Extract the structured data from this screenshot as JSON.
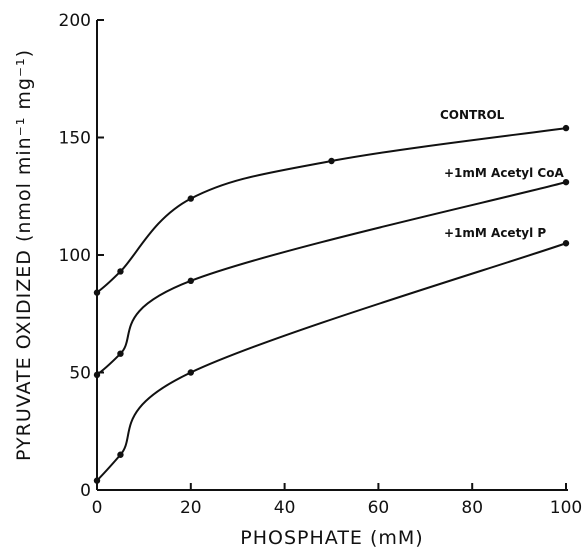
{
  "chart_data": {
    "type": "line",
    "xlabel": "PHOSPHATE (mM)",
    "ylabel": "PYRUVATE OXIDIZED (nmol min⁻¹ mg⁻¹)",
    "xlim": [
      0,
      100
    ],
    "ylim": [
      0,
      200
    ],
    "xticks": [
      0,
      20,
      40,
      60,
      80,
      100
    ],
    "yticks": [
      0,
      50,
      100,
      150,
      200
    ],
    "grid": false,
    "legend": "none",
    "series": [
      {
        "name": "CONTROL",
        "x": [
          0,
          5,
          20,
          50,
          100
        ],
        "y": [
          84,
          93,
          124,
          140,
          154
        ]
      },
      {
        "name": "+1mM Acetyl CoA",
        "x": [
          0,
          5,
          20,
          100
        ],
        "y": [
          49,
          58,
          89,
          131
        ]
      },
      {
        "name": "+1mM Acetyl P",
        "x": [
          0,
          5,
          20,
          100
        ],
        "y": [
          4,
          15,
          50,
          105
        ]
      }
    ]
  }
}
